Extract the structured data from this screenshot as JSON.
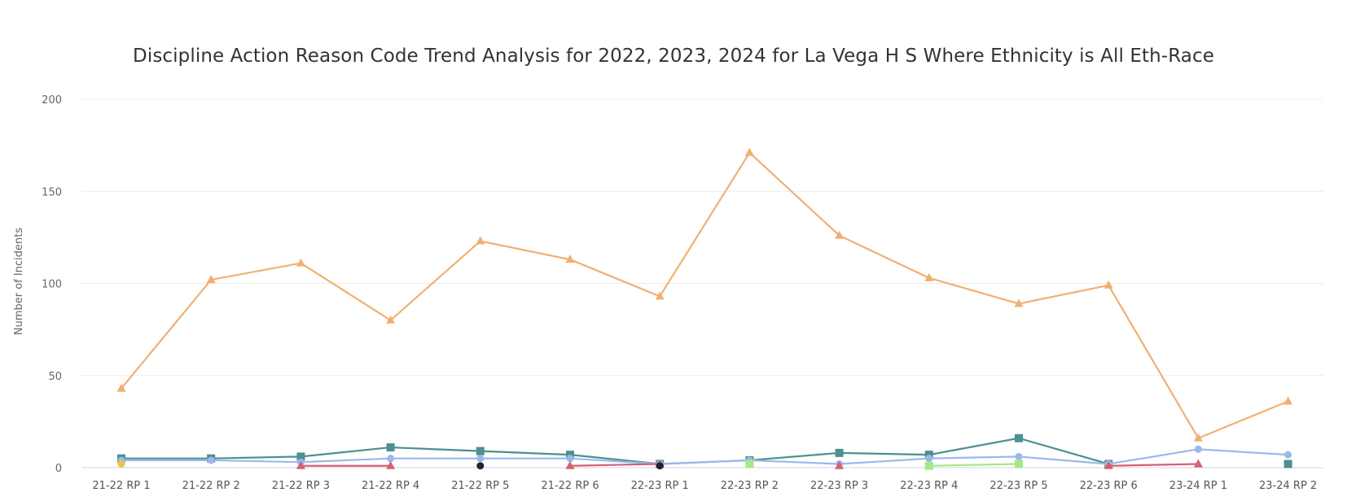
{
  "chart_data": {
    "type": "line",
    "title": "Discipline Action Reason Code Trend Analysis for 2022, 2023, 2024 for La Vega H S Where Ethnicity is All Eth-Race",
    "ylabel": "Number of Incidents",
    "ylim": [
      0,
      200
    ],
    "yticks": [
      "0",
      "50",
      "100",
      "150",
      "200"
    ],
    "grid": true,
    "categories": [
      "21-22 RP 1",
      "21-22 RP 2",
      "21-22 RP 3",
      "21-22 RP 4",
      "21-22 RP 5",
      "21-22 RP 6",
      "22-23 RP 1",
      "22-23 RP 2",
      "22-23 RP 3",
      "22-23 RP 4",
      "22-23 RP 5",
      "22-23 RP 6",
      "23-24 RP 1",
      "23-24 RP 2"
    ],
    "series": [
      {
        "color": "#f0b072",
        "marker": "triangle",
        "values": [
          43,
          102,
          111,
          80,
          123,
          113,
          93,
          171,
          126,
          103,
          89,
          99,
          16,
          36
        ]
      },
      {
        "color": "#4e8f8f",
        "marker": "square",
        "values": [
          5,
          5,
          6,
          11,
          9,
          7,
          2,
          4,
          8,
          7,
          16,
          2,
          null,
          2
        ]
      },
      {
        "color": "#9bb8ec",
        "marker": "circle",
        "values": [
          4,
          4,
          3,
          5,
          5,
          5,
          2,
          4,
          2,
          5,
          6,
          2,
          10,
          7
        ]
      },
      {
        "color": "#d95f6f",
        "marker": "triangle",
        "values": [
          null,
          null,
          1,
          1,
          null,
          1,
          2,
          null,
          1,
          null,
          null,
          1,
          2,
          null
        ]
      },
      {
        "color": "#a5e887",
        "marker": "square",
        "values": [
          null,
          null,
          null,
          null,
          null,
          null,
          null,
          2,
          null,
          1,
          2,
          null,
          null,
          null
        ]
      },
      {
        "color": "#f3c242",
        "marker": "circle",
        "values": [
          2,
          null,
          null,
          null,
          null,
          null,
          null,
          null,
          null,
          null,
          null,
          null,
          null,
          null
        ]
      },
      {
        "color": "#222233",
        "marker": "circle",
        "values": [
          null,
          null,
          null,
          null,
          1,
          null,
          1,
          null,
          null,
          null,
          null,
          null,
          null,
          null
        ]
      }
    ]
  }
}
